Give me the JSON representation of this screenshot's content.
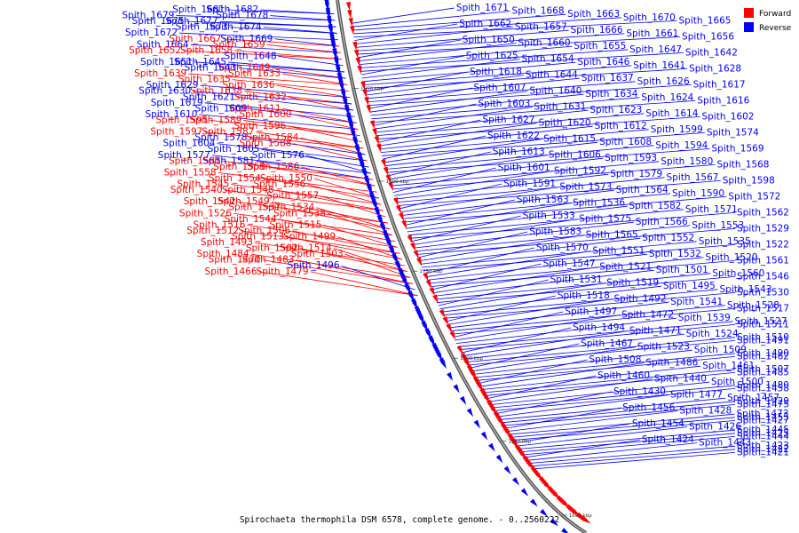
{
  "title": "Spirochaeta thermophila DSM 6578, complete genome. - 0..2560222",
  "legend": {
    "forward_label": "Forward",
    "reverse_label": "Reverse",
    "forward_color": "#ff0000",
    "reverse_color": "#0000ff"
  },
  "ticks": [
    "1850 kbp",
    "1800 kbp",
    "1750 kbp",
    "1700 kbp",
    "1650 kbp",
    "1600 kbp"
  ],
  "chart_data": {
    "type": "genome-map",
    "range_start": 0,
    "range_end": 2560222,
    "left_labels": [
      {
        "name": "Spith_1682",
        "strand": "reverse"
      },
      {
        "name": "Spith_1681",
        "strand": "reverse"
      },
      {
        "name": "Spith_1679",
        "strand": "reverse"
      },
      {
        "name": "Spith_1678",
        "strand": "reverse"
      },
      {
        "name": "Spith_1677",
        "strand": "reverse"
      },
      {
        "name": "Spith_1675",
        "strand": "reverse"
      },
      {
        "name": "Spith_1674",
        "strand": "reverse"
      },
      {
        "name": "Spith_1673",
        "strand": "reverse"
      },
      {
        "name": "Spith_1672",
        "strand": "reverse"
      },
      {
        "name": "Spith_1669",
        "strand": "reverse"
      },
      {
        "name": "Spith_1667",
        "strand": "forward"
      },
      {
        "name": "Spith_1664",
        "strand": "reverse"
      },
      {
        "name": "Spith_1659",
        "strand": "forward"
      },
      {
        "name": "Spith_1658",
        "strand": "forward"
      },
      {
        "name": "Spith_1652",
        "strand": "forward"
      },
      {
        "name": "Spith_1648",
        "strand": "reverse"
      },
      {
        "name": "Spith_1645",
        "strand": "reverse"
      },
      {
        "name": "Spith_1651",
        "strand": "reverse"
      },
      {
        "name": "Spith_1649",
        "strand": "forward"
      },
      {
        "name": "Spith_1643",
        "strand": "reverse"
      },
      {
        "name": "Spith_1639",
        "strand": "forward"
      },
      {
        "name": "Spith_1633",
        "strand": "forward"
      },
      {
        "name": "Spith_1635",
        "strand": "forward"
      },
      {
        "name": "Spith_1629",
        "strand": "reverse"
      },
      {
        "name": "Spith_1636",
        "strand": "forward"
      },
      {
        "name": "Spith_1638",
        "strand": "forward"
      },
      {
        "name": "Spith_1630",
        "strand": "reverse"
      },
      {
        "name": "Spith_1632",
        "strand": "forward"
      },
      {
        "name": "Spith_1621",
        "strand": "reverse"
      },
      {
        "name": "Spith_1619",
        "strand": "reverse"
      },
      {
        "name": "Spith_1611",
        "strand": "forward"
      },
      {
        "name": "Spith_1609",
        "strand": "reverse"
      },
      {
        "name": "Spith_1610",
        "strand": "reverse"
      },
      {
        "name": "Spith_1600",
        "strand": "forward"
      },
      {
        "name": "Spith_1589",
        "strand": "forward"
      },
      {
        "name": "Spith_1595",
        "strand": "forward"
      },
      {
        "name": "Spith_1596",
        "strand": "forward"
      },
      {
        "name": "Spith_1587",
        "strand": "forward"
      },
      {
        "name": "Spith_1597",
        "strand": "forward"
      },
      {
        "name": "Spith_1584",
        "strand": "forward"
      },
      {
        "name": "Spith_1578",
        "strand": "reverse"
      },
      {
        "name": "Spith_1604",
        "strand": "reverse"
      },
      {
        "name": "Spith_1588",
        "strand": "forward"
      },
      {
        "name": "Spith_1605",
        "strand": "reverse"
      },
      {
        "name": "Spith_1577",
        "strand": "reverse"
      },
      {
        "name": "Spith_1576",
        "strand": "reverse"
      },
      {
        "name": "Spith_1581",
        "strand": "reverse"
      },
      {
        "name": "Spith_1585",
        "strand": "forward"
      },
      {
        "name": "Spith_1586",
        "strand": "forward"
      },
      {
        "name": "Spith_1559",
        "strand": "forward"
      },
      {
        "name": "Spith_1558",
        "strand": "forward"
      },
      {
        "name": "Spith_1550",
        "strand": "forward"
      },
      {
        "name": "Spith_1554",
        "strand": "forward"
      },
      {
        "name": "Spith_1545",
        "strand": "forward"
      },
      {
        "name": "Spith_1556",
        "strand": "forward"
      },
      {
        "name": "Spith_1548",
        "strand": "forward"
      },
      {
        "name": "Spith_1540",
        "strand": "forward"
      },
      {
        "name": "Spith_1557",
        "strand": "forward"
      },
      {
        "name": "Spith_1549",
        "strand": "forward"
      },
      {
        "name": "Spith_1542",
        "strand": "forward"
      },
      {
        "name": "Spith_1534",
        "strand": "forward"
      },
      {
        "name": "Spith_1537",
        "strand": "forward"
      },
      {
        "name": "Spith_1526",
        "strand": "forward"
      },
      {
        "name": "Spith_1538",
        "strand": "forward"
      },
      {
        "name": "Spith_1544",
        "strand": "forward"
      },
      {
        "name": "Spith_1516",
        "strand": "forward"
      },
      {
        "name": "Spith_1515",
        "strand": "forward"
      },
      {
        "name": "Spith_1506",
        "strand": "forward"
      },
      {
        "name": "Spith_1512",
        "strand": "forward"
      },
      {
        "name": "Spith_1499",
        "strand": "forward"
      },
      {
        "name": "Spith_1513",
        "strand": "forward"
      },
      {
        "name": "Spith_1493",
        "strand": "forward"
      },
      {
        "name": "Spith_1514",
        "strand": "forward"
      },
      {
        "name": "Spith_1502",
        "strand": "forward"
      },
      {
        "name": "Spith_1484",
        "strand": "forward"
      },
      {
        "name": "Spith_1503",
        "strand": "forward"
      },
      {
        "name": "Spith_1483",
        "strand": "forward"
      },
      {
        "name": "Spith_1470",
        "strand": "forward"
      },
      {
        "name": "Spith_1496",
        "strand": "reverse"
      },
      {
        "name": "Spith_1479",
        "strand": "forward"
      },
      {
        "name": "Spith_1466",
        "strand": "forward"
      }
    ],
    "right_labels": [
      {
        "name": "Spith_1671",
        "strand": "reverse"
      },
      {
        "name": "Spith_1668",
        "strand": "reverse"
      },
      {
        "name": "Spith_1663",
        "strand": "reverse"
      },
      {
        "name": "Spith_1670",
        "strand": "reverse"
      },
      {
        "name": "Spith_1665",
        "strand": "reverse"
      },
      {
        "name": "Spith_1662",
        "strand": "reverse"
      },
      {
        "name": "Spith_1657",
        "strand": "reverse"
      },
      {
        "name": "Spith_1666",
        "strand": "reverse"
      },
      {
        "name": "Spith_1661",
        "strand": "reverse"
      },
      {
        "name": "Spith_1656",
        "strand": "reverse"
      },
      {
        "name": "Spith_1650",
        "strand": "reverse"
      },
      {
        "name": "Spith_1660",
        "strand": "reverse"
      },
      {
        "name": "Spith_1655",
        "strand": "reverse"
      },
      {
        "name": "Spith_1647",
        "strand": "reverse"
      },
      {
        "name": "Spith_1642",
        "strand": "reverse"
      },
      {
        "name": "Spith_1625",
        "strand": "reverse"
      },
      {
        "name": "Spith_1654",
        "strand": "reverse"
      },
      {
        "name": "Spith_1646",
        "strand": "reverse"
      },
      {
        "name": "Spith_1641",
        "strand": "reverse"
      },
      {
        "name": "Spith_1628",
        "strand": "reverse"
      },
      {
        "name": "Spith_1618",
        "strand": "reverse"
      },
      {
        "name": "Spith_1644",
        "strand": "reverse"
      },
      {
        "name": "Spith_1637",
        "strand": "reverse"
      },
      {
        "name": "Spith_1626",
        "strand": "reverse"
      },
      {
        "name": "Spith_1617",
        "strand": "reverse"
      },
      {
        "name": "Spith_1607",
        "strand": "reverse"
      },
      {
        "name": "Spith_1640",
        "strand": "reverse"
      },
      {
        "name": "Spith_1634",
        "strand": "reverse"
      },
      {
        "name": "Spith_1624",
        "strand": "reverse"
      },
      {
        "name": "Spith_1616",
        "strand": "reverse"
      },
      {
        "name": "Spith_1603",
        "strand": "reverse"
      },
      {
        "name": "Spith_1631",
        "strand": "reverse"
      },
      {
        "name": "Spith_1623",
        "strand": "reverse"
      },
      {
        "name": "Spith_1614",
        "strand": "reverse"
      },
      {
        "name": "Spith_1602",
        "strand": "reverse"
      },
      {
        "name": "Spith_1627",
        "strand": "reverse"
      },
      {
        "name": "Spith_1620",
        "strand": "reverse"
      },
      {
        "name": "Spith_1612",
        "strand": "reverse"
      },
      {
        "name": "Spith_1599",
        "strand": "reverse"
      },
      {
        "name": "Spith_1574",
        "strand": "reverse"
      },
      {
        "name": "Spith_1622",
        "strand": "reverse"
      },
      {
        "name": "Spith_1615",
        "strand": "reverse"
      },
      {
        "name": "Spith_1608",
        "strand": "reverse"
      },
      {
        "name": "Spith_1594",
        "strand": "reverse"
      },
      {
        "name": "Spith_1569",
        "strand": "reverse"
      },
      {
        "name": "Spith_1613",
        "strand": "reverse"
      },
      {
        "name": "Spith_1606",
        "strand": "reverse"
      },
      {
        "name": "Spith_1593",
        "strand": "reverse"
      },
      {
        "name": "Spith_1580",
        "strand": "reverse"
      },
      {
        "name": "Spith_1568",
        "strand": "reverse"
      },
      {
        "name": "Spith_1601",
        "strand": "reverse"
      },
      {
        "name": "Spith_1592",
        "strand": "reverse"
      },
      {
        "name": "Spith_1579",
        "strand": "reverse"
      },
      {
        "name": "Spith_1567",
        "strand": "reverse"
      },
      {
        "name": "Spith_1598",
        "strand": "reverse"
      },
      {
        "name": "Spith_1591",
        "strand": "reverse"
      },
      {
        "name": "Spith_1573",
        "strand": "reverse"
      },
      {
        "name": "Spith_1564",
        "strand": "reverse"
      },
      {
        "name": "Spith_1590",
        "strand": "reverse"
      },
      {
        "name": "Spith_1572",
        "strand": "reverse"
      },
      {
        "name": "Spith_1563",
        "strand": "reverse"
      },
      {
        "name": "Spith_1536",
        "strand": "reverse"
      },
      {
        "name": "Spith_1582",
        "strand": "reverse"
      },
      {
        "name": "Spith_1571",
        "strand": "reverse"
      },
      {
        "name": "Spith_1562",
        "strand": "reverse"
      },
      {
        "name": "Spith_1533",
        "strand": "reverse"
      },
      {
        "name": "Spith_1575",
        "strand": "reverse"
      },
      {
        "name": "Spith_1566",
        "strand": "reverse"
      },
      {
        "name": "Spith_1553",
        "strand": "reverse"
      },
      {
        "name": "Spith_1529",
        "strand": "reverse"
      },
      {
        "name": "Spith_1583",
        "strand": "reverse"
      },
      {
        "name": "Spith_1565",
        "strand": "reverse"
      },
      {
        "name": "Spith_1552",
        "strand": "reverse"
      },
      {
        "name": "Spith_1535",
        "strand": "reverse"
      },
      {
        "name": "Spith_1522",
        "strand": "reverse"
      },
      {
        "name": "Spith_1570",
        "strand": "reverse"
      },
      {
        "name": "Spith_1551",
        "strand": "reverse"
      },
      {
        "name": "Spith_1532",
        "strand": "reverse"
      },
      {
        "name": "Spith_1520",
        "strand": "reverse"
      },
      {
        "name": "Spith_1561",
        "strand": "reverse"
      },
      {
        "name": "Spith_1547",
        "strand": "reverse"
      },
      {
        "name": "Spith_1521",
        "strand": "reverse"
      },
      {
        "name": "Spith_1501",
        "strand": "reverse"
      },
      {
        "name": "Spith_1560",
        "strand": "reverse"
      },
      {
        "name": "Spith_1546",
        "strand": "reverse"
      },
      {
        "name": "Spith_1531",
        "strand": "reverse"
      },
      {
        "name": "Spith_1519",
        "strand": "reverse"
      },
      {
        "name": "Spith_1495",
        "strand": "reverse"
      },
      {
        "name": "Spith_1543",
        "strand": "reverse"
      },
      {
        "name": "Spith_1530",
        "strand": "reverse"
      },
      {
        "name": "Spith_1518",
        "strand": "reverse"
      },
      {
        "name": "Spith_1492",
        "strand": "reverse"
      },
      {
        "name": "Spith_1541",
        "strand": "reverse"
      },
      {
        "name": "Spith_1528",
        "strand": "reverse"
      },
      {
        "name": "Spith_1517",
        "strand": "reverse"
      },
      {
        "name": "Spith_1497",
        "strand": "reverse"
      },
      {
        "name": "Spith_1472",
        "strand": "reverse"
      },
      {
        "name": "Spith_1539",
        "strand": "reverse"
      },
      {
        "name": "Spith_1527",
        "strand": "reverse"
      },
      {
        "name": "Spith_1511",
        "strand": "reverse"
      },
      {
        "name": "Spith_1494",
        "strand": "reverse"
      },
      {
        "name": "Spith_1471",
        "strand": "reverse"
      },
      {
        "name": "Spith_1524",
        "strand": "reverse"
      },
      {
        "name": "Spith_1510",
        "strand": "reverse"
      },
      {
        "name": "Spith_1491",
        "strand": "reverse"
      },
      {
        "name": "Spith_1467",
        "strand": "reverse"
      },
      {
        "name": "Spith_1523",
        "strand": "reverse"
      },
      {
        "name": "Spith_1509",
        "strand": "reverse"
      },
      {
        "name": "Spith_1490",
        "strand": "reverse"
      },
      {
        "name": "Spith_1462",
        "strand": "reverse"
      },
      {
        "name": "Spith_1508",
        "strand": "reverse"
      },
      {
        "name": "Spith_1486",
        "strand": "reverse"
      },
      {
        "name": "Spith_1461",
        "strand": "reverse"
      },
      {
        "name": "Spith_1507",
        "strand": "reverse"
      },
      {
        "name": "Spith_1485",
        "strand": "reverse"
      },
      {
        "name": "Spith_1460",
        "strand": "reverse"
      },
      {
        "name": "Spith_1440",
        "strand": "reverse"
      },
      {
        "name": "Spith_1500",
        "strand": "reverse"
      },
      {
        "name": "Spith_1480",
        "strand": "reverse"
      },
      {
        "name": "Spith_1458",
        "strand": "reverse"
      },
      {
        "name": "Spith_1430",
        "strand": "reverse"
      },
      {
        "name": "Spith_1477",
        "strand": "reverse"
      },
      {
        "name": "Spith_1457",
        "strand": "reverse"
      },
      {
        "name": "Spith_1429",
        "strand": "reverse"
      },
      {
        "name": "Spith_1475",
        "strand": "reverse"
      },
      {
        "name": "Spith_1456",
        "strand": "reverse"
      },
      {
        "name": "Spith_1428",
        "strand": "reverse"
      },
      {
        "name": "Spith_1473",
        "strand": "reverse"
      },
      {
        "name": "Spith_1455",
        "strand": "reverse"
      },
      {
        "name": "Spith_1427",
        "strand": "reverse"
      },
      {
        "name": "Spith_1454",
        "strand": "reverse"
      },
      {
        "name": "Spith_1426",
        "strand": "reverse"
      },
      {
        "name": "Spith_1445",
        "strand": "reverse"
      },
      {
        "name": "Spith_1425",
        "strand": "reverse"
      },
      {
        "name": "Spith_1444",
        "strand": "reverse"
      },
      {
        "name": "Spith_1424",
        "strand": "reverse"
      },
      {
        "name": "Spith_1443",
        "strand": "reverse"
      },
      {
        "name": "Spith_1423",
        "strand": "reverse"
      },
      {
        "name": "Spith_1422",
        "strand": "reverse"
      },
      {
        "name": "Spith_1421",
        "strand": "reverse"
      }
    ]
  }
}
